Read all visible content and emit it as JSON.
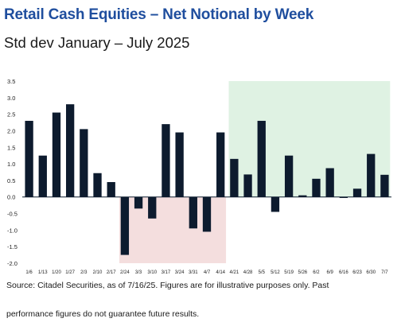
{
  "title": "Retail Cash Equities – Net Notional by Week",
  "subtitle": "Std dev January – July 2025",
  "footnote_line1": "Source: Citadel Securities, as of 7/16/25. Figures are for illustrative purposes only. Past",
  "footnote_line2": "performance figures do not guarantee future results.",
  "colors": {
    "bar": "#0d1b2e",
    "negative_region": "#f4dede",
    "positive_region": "#dff2e3",
    "title": "#1f4e9e"
  },
  "chart_data": {
    "type": "bar",
    "categories": [
      "1/6",
      "1/13",
      "1/20",
      "1/27",
      "2/3",
      "2/10",
      "2/17",
      "2/24",
      "3/3",
      "3/10",
      "3/17",
      "3/24",
      "3/31",
      "4/7",
      "4/14",
      "4/21",
      "4/28",
      "5/5",
      "5/12",
      "5/19",
      "5/26",
      "6/2",
      "6/9",
      "6/16",
      "6/23",
      "6/30",
      "7/7"
    ],
    "values": [
      2.3,
      1.25,
      2.55,
      2.8,
      2.05,
      0.72,
      0.45,
      -1.75,
      -0.35,
      -0.65,
      2.2,
      1.95,
      -0.95,
      -1.05,
      1.95,
      1.15,
      0.68,
      2.3,
      -0.45,
      1.25,
      0.05,
      0.55,
      0.87,
      -0.03,
      0.25,
      1.3,
      0.67
    ],
    "ylim": [
      -2.0,
      3.5
    ],
    "yticks": [
      "-2.0",
      "-1.5",
      "-1.0",
      "-0.5",
      "0.0",
      "0.5",
      "1.0",
      "1.5",
      "2.0",
      "2.5",
      "3.0",
      "3.5"
    ],
    "shaded_regions": [
      {
        "from": "2/24",
        "to": "4/14",
        "sign": "negative"
      },
      {
        "from": "4/21",
        "to": "7/7",
        "sign": "positive"
      }
    ],
    "grid": false
  }
}
